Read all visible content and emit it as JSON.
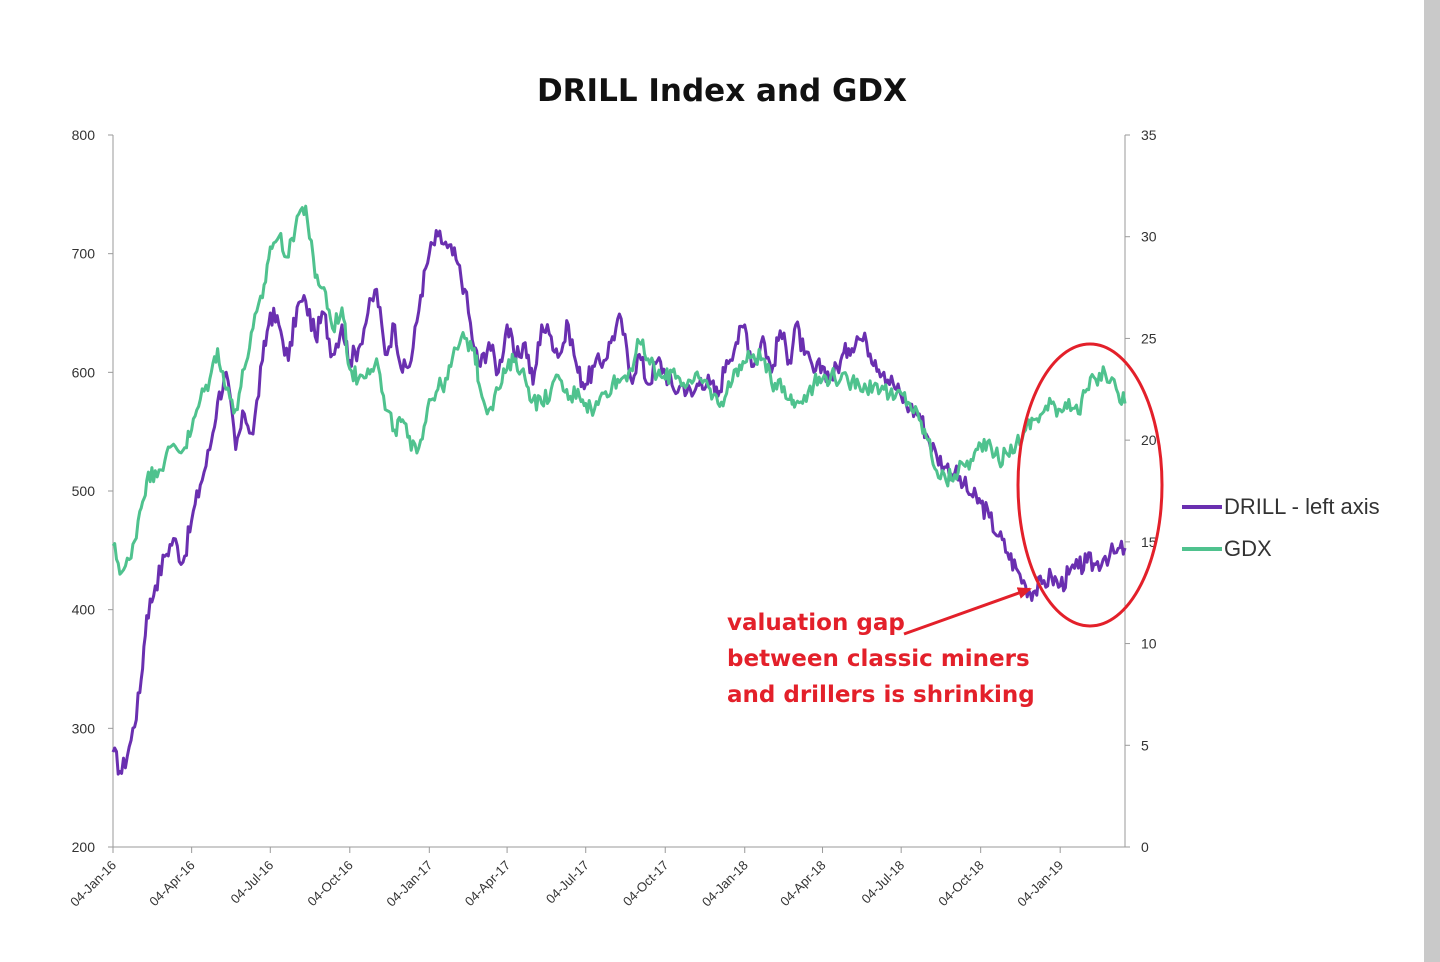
{
  "chart_data": {
    "type": "line",
    "title": "DRILL Index and GDX",
    "xlabel": "",
    "ylabel": "",
    "y_left": {
      "ylim": [
        200,
        800
      ],
      "ticks": [
        "800",
        "700",
        "600",
        "500",
        "400",
        "300",
        "200"
      ]
    },
    "y_right": {
      "ylim": [
        0,
        35
      ],
      "ticks": [
        "35",
        "30",
        "25",
        "20",
        "15",
        "10",
        "5",
        "0"
      ]
    },
    "x_ticks": [
      "04-Jan-16",
      "04-Apr-16",
      "04-Jul-16",
      "04-Oct-16",
      "04-Jan-17",
      "04-Apr-17",
      "04-Jul-17",
      "04-Oct-17",
      "04-Jan-18",
      "04-Apr-18",
      "04-Jul-18",
      "04-Oct-18",
      "04-Jan-19"
    ],
    "x_range": [
      "2016-01-04",
      "2019-03-20"
    ],
    "legend_position": "right",
    "grid": false,
    "series": [
      {
        "name": "DRILL - left axis",
        "axis": "left",
        "color": "#6a2fb0",
        "points": [
          [
            "2016-01-04",
            280
          ],
          [
            "2016-01-14",
            262
          ],
          [
            "2016-01-25",
            290
          ],
          [
            "2016-02-04",
            330
          ],
          [
            "2016-02-12",
            395
          ],
          [
            "2016-02-22",
            420
          ],
          [
            "2016-03-04",
            445
          ],
          [
            "2016-03-14",
            460
          ],
          [
            "2016-03-25",
            440
          ],
          [
            "2016-04-04",
            475
          ],
          [
            "2016-04-14",
            505
          ],
          [
            "2016-04-25",
            535
          ],
          [
            "2016-05-04",
            575
          ],
          [
            "2016-05-14",
            600
          ],
          [
            "2016-05-25",
            535
          ],
          [
            "2016-06-04",
            565
          ],
          [
            "2016-06-14",
            548
          ],
          [
            "2016-06-25",
            610
          ],
          [
            "2016-07-04",
            650
          ],
          [
            "2016-07-14",
            640
          ],
          [
            "2016-07-25",
            610
          ],
          [
            "2016-08-04",
            655
          ],
          [
            "2016-08-14",
            660
          ],
          [
            "2016-08-25",
            630
          ],
          [
            "2016-09-04",
            650
          ],
          [
            "2016-09-14",
            615
          ],
          [
            "2016-09-25",
            640
          ],
          [
            "2016-10-04",
            610
          ],
          [
            "2016-10-14",
            620
          ],
          [
            "2016-10-25",
            650
          ],
          [
            "2016-11-04",
            670
          ],
          [
            "2016-11-14",
            615
          ],
          [
            "2016-11-25",
            640
          ],
          [
            "2016-12-04",
            600
          ],
          [
            "2016-12-14",
            610
          ],
          [
            "2016-12-25",
            665
          ],
          [
            "2017-01-04",
            700
          ],
          [
            "2017-01-14",
            715
          ],
          [
            "2017-01-25",
            705
          ],
          [
            "2017-02-04",
            695
          ],
          [
            "2017-02-14",
            670
          ],
          [
            "2017-02-25",
            620
          ],
          [
            "2017-03-04",
            605
          ],
          [
            "2017-03-14",
            625
          ],
          [
            "2017-03-25",
            600
          ],
          [
            "2017-04-04",
            640
          ],
          [
            "2017-04-14",
            610
          ],
          [
            "2017-04-25",
            625
          ],
          [
            "2017-05-04",
            590
          ],
          [
            "2017-05-14",
            640
          ],
          [
            "2017-05-25",
            630
          ],
          [
            "2017-06-04",
            615
          ],
          [
            "2017-06-14",
            640
          ],
          [
            "2017-06-25",
            600
          ],
          [
            "2017-07-04",
            590
          ],
          [
            "2017-07-14",
            605
          ],
          [
            "2017-07-25",
            610
          ],
          [
            "2017-08-04",
            630
          ],
          [
            "2017-08-14",
            645
          ],
          [
            "2017-08-25",
            595
          ],
          [
            "2017-09-04",
            615
          ],
          [
            "2017-09-14",
            590
          ],
          [
            "2017-09-25",
            610
          ],
          [
            "2017-10-04",
            600
          ],
          [
            "2017-10-14",
            585
          ],
          [
            "2017-10-25",
            590
          ],
          [
            "2017-11-04",
            580
          ],
          [
            "2017-11-14",
            595
          ],
          [
            "2017-11-25",
            590
          ],
          [
            "2017-12-04",
            580
          ],
          [
            "2017-12-14",
            610
          ],
          [
            "2017-12-25",
            625
          ],
          [
            "2018-01-04",
            640
          ],
          [
            "2018-01-14",
            605
          ],
          [
            "2018-01-25",
            630
          ],
          [
            "2018-02-04",
            600
          ],
          [
            "2018-02-14",
            635
          ],
          [
            "2018-02-25",
            610
          ],
          [
            "2018-03-04",
            640
          ],
          [
            "2018-03-14",
            615
          ],
          [
            "2018-03-25",
            600
          ],
          [
            "2018-04-04",
            605
          ],
          [
            "2018-04-14",
            595
          ],
          [
            "2018-04-25",
            610
          ],
          [
            "2018-05-04",
            620
          ],
          [
            "2018-05-14",
            630
          ],
          [
            "2018-05-25",
            625
          ],
          [
            "2018-06-04",
            610
          ],
          [
            "2018-06-14",
            600
          ],
          [
            "2018-06-25",
            590
          ],
          [
            "2018-07-04",
            580
          ],
          [
            "2018-07-14",
            570
          ],
          [
            "2018-07-25",
            565
          ],
          [
            "2018-08-04",
            545
          ],
          [
            "2018-08-14",
            530
          ],
          [
            "2018-08-25",
            520
          ],
          [
            "2018-09-04",
            515
          ],
          [
            "2018-09-14",
            505
          ],
          [
            "2018-09-25",
            495
          ],
          [
            "2018-10-04",
            490
          ],
          [
            "2018-10-14",
            478
          ],
          [
            "2018-10-25",
            462
          ],
          [
            "2018-11-04",
            448
          ],
          [
            "2018-11-14",
            435
          ],
          [
            "2018-11-25",
            420
          ],
          [
            "2018-12-04",
            415
          ],
          [
            "2018-12-14",
            422
          ],
          [
            "2018-12-25",
            428
          ],
          [
            "2019-01-04",
            420
          ],
          [
            "2019-01-14",
            430
          ],
          [
            "2019-01-25",
            435
          ],
          [
            "2019-02-04",
            440
          ],
          [
            "2019-02-14",
            438
          ],
          [
            "2019-02-25",
            445
          ],
          [
            "2019-03-10",
            448
          ],
          [
            "2019-03-20",
            452
          ]
        ]
      },
      {
        "name": "GDX",
        "axis": "right",
        "color": "#4fc28e",
        "points": [
          [
            "2016-01-04",
            14.8
          ],
          [
            "2016-01-14",
            13.5
          ],
          [
            "2016-01-25",
            14.2
          ],
          [
            "2016-02-04",
            16.5
          ],
          [
            "2016-02-12",
            18.0
          ],
          [
            "2016-02-22",
            18.5
          ],
          [
            "2016-03-04",
            19.0
          ],
          [
            "2016-03-14",
            19.8
          ],
          [
            "2016-03-25",
            19.5
          ],
          [
            "2016-04-04",
            20.5
          ],
          [
            "2016-04-14",
            22.0
          ],
          [
            "2016-04-25",
            23.0
          ],
          [
            "2016-05-04",
            24.5
          ],
          [
            "2016-05-14",
            22.5
          ],
          [
            "2016-05-25",
            21.5
          ],
          [
            "2016-06-04",
            23.5
          ],
          [
            "2016-06-14",
            25.5
          ],
          [
            "2016-06-25",
            27.0
          ],
          [
            "2016-07-04",
            29.5
          ],
          [
            "2016-07-14",
            30.0
          ],
          [
            "2016-07-25",
            29.0
          ],
          [
            "2016-08-04",
            31.0
          ],
          [
            "2016-08-14",
            31.5
          ],
          [
            "2016-08-25",
            28.0
          ],
          [
            "2016-09-04",
            27.5
          ],
          [
            "2016-09-14",
            25.5
          ],
          [
            "2016-09-25",
            26.5
          ],
          [
            "2016-10-04",
            23.5
          ],
          [
            "2016-10-14",
            23.0
          ],
          [
            "2016-10-25",
            23.5
          ],
          [
            "2016-11-04",
            24.0
          ],
          [
            "2016-11-14",
            21.5
          ],
          [
            "2016-11-25",
            20.5
          ],
          [
            "2016-12-04",
            21.0
          ],
          [
            "2016-12-14",
            19.5
          ],
          [
            "2016-12-25",
            20.0
          ],
          [
            "2017-01-04",
            22.0
          ],
          [
            "2017-01-14",
            22.5
          ],
          [
            "2017-01-25",
            23.0
          ],
          [
            "2017-02-04",
            24.5
          ],
          [
            "2017-02-14",
            25.0
          ],
          [
            "2017-02-25",
            24.5
          ],
          [
            "2017-03-04",
            22.5
          ],
          [
            "2017-03-14",
            21.5
          ],
          [
            "2017-03-25",
            22.5
          ],
          [
            "2017-04-04",
            23.5
          ],
          [
            "2017-04-14",
            24.0
          ],
          [
            "2017-04-25",
            23.0
          ],
          [
            "2017-05-04",
            22.0
          ],
          [
            "2017-05-14",
            21.8
          ],
          [
            "2017-05-25",
            22.5
          ],
          [
            "2017-06-04",
            23.0
          ],
          [
            "2017-06-14",
            22.0
          ],
          [
            "2017-06-25",
            22.5
          ],
          [
            "2017-07-04",
            21.8
          ],
          [
            "2017-07-14",
            21.5
          ],
          [
            "2017-07-25",
            22.3
          ],
          [
            "2017-08-04",
            22.8
          ],
          [
            "2017-08-14",
            23.0
          ],
          [
            "2017-08-25",
            23.5
          ],
          [
            "2017-09-04",
            24.8
          ],
          [
            "2017-09-14",
            24.0
          ],
          [
            "2017-09-25",
            23.2
          ],
          [
            "2017-10-04",
            23.0
          ],
          [
            "2017-10-14",
            23.5
          ],
          [
            "2017-10-25",
            22.8
          ],
          [
            "2017-11-04",
            22.8
          ],
          [
            "2017-11-14",
            23.0
          ],
          [
            "2017-11-25",
            22.5
          ],
          [
            "2017-12-04",
            21.8
          ],
          [
            "2017-12-14",
            22.3
          ],
          [
            "2017-12-25",
            23.5
          ],
          [
            "2018-01-04",
            23.8
          ],
          [
            "2018-01-14",
            24.2
          ],
          [
            "2018-01-25",
            24.0
          ],
          [
            "2018-02-04",
            22.8
          ],
          [
            "2018-02-14",
            23.0
          ],
          [
            "2018-02-25",
            22.0
          ],
          [
            "2018-03-04",
            21.8
          ],
          [
            "2018-03-14",
            22.2
          ],
          [
            "2018-03-25",
            22.8
          ],
          [
            "2018-04-04",
            23.0
          ],
          [
            "2018-04-14",
            23.2
          ],
          [
            "2018-04-25",
            23.0
          ],
          [
            "2018-05-04",
            22.8
          ],
          [
            "2018-05-14",
            23.0
          ],
          [
            "2018-05-25",
            22.5
          ],
          [
            "2018-06-04",
            22.8
          ],
          [
            "2018-06-14",
            22.5
          ],
          [
            "2018-06-25",
            22.0
          ],
          [
            "2018-07-04",
            22.3
          ],
          [
            "2018-07-14",
            21.8
          ],
          [
            "2018-07-25",
            21.0
          ],
          [
            "2018-08-04",
            20.0
          ],
          [
            "2018-08-14",
            18.5
          ],
          [
            "2018-08-25",
            18.0
          ],
          [
            "2018-09-04",
            18.3
          ],
          [
            "2018-09-14",
            18.8
          ],
          [
            "2018-09-25",
            19.0
          ],
          [
            "2018-10-04",
            19.8
          ],
          [
            "2018-10-14",
            20.0
          ],
          [
            "2018-10-25",
            19.0
          ],
          [
            "2018-11-04",
            19.3
          ],
          [
            "2018-11-14",
            19.8
          ],
          [
            "2018-11-25",
            20.5
          ],
          [
            "2018-12-04",
            21.0
          ],
          [
            "2018-12-14",
            21.3
          ],
          [
            "2018-12-25",
            21.8
          ],
          [
            "2019-01-04",
            21.5
          ],
          [
            "2019-01-14",
            22.0
          ],
          [
            "2019-01-25",
            21.3
          ],
          [
            "2019-02-04",
            22.5
          ],
          [
            "2019-02-14",
            23.0
          ],
          [
            "2019-02-25",
            23.3
          ],
          [
            "2019-03-10",
            22.5
          ],
          [
            "2019-03-20",
            21.8
          ]
        ]
      }
    ],
    "annotation": {
      "lines": [
        "valuation gap",
        "between classic miners",
        "and drillers is shrinking"
      ],
      "color": "#e3202a"
    }
  }
}
